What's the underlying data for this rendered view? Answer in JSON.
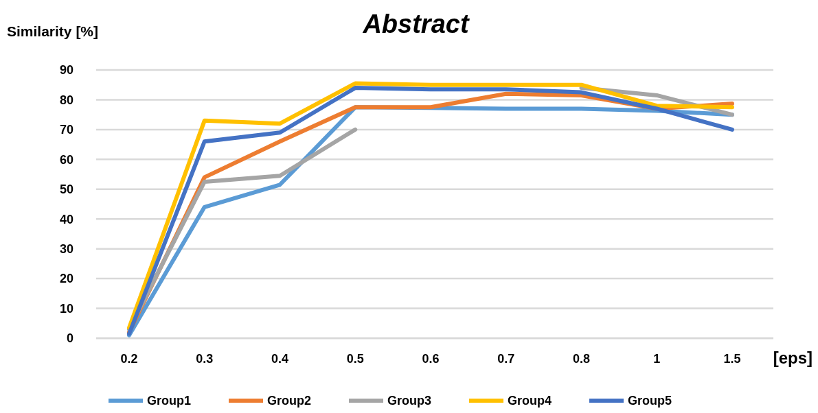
{
  "chart_data": {
    "type": "line",
    "title": "Abstract",
    "ylabel": "Similarity [%]",
    "xlabel": "[eps]",
    "categories": [
      "0.2",
      "0.3",
      "0.4",
      "0.5",
      "0.6",
      "0.7",
      "0.8",
      "1",
      "1.5"
    ],
    "ylim": [
      0,
      90
    ],
    "yticks": [
      0,
      10,
      20,
      30,
      40,
      50,
      60,
      70,
      80,
      90
    ],
    "grid": "y",
    "legend": "bottom",
    "marker": "none",
    "line_style": "solid",
    "series": [
      {
        "name": "Group1",
        "color": "#5b9bd5",
        "values": [
          1,
          44,
          51.5,
          77.5,
          77.3,
          77,
          77,
          76.3,
          75
        ]
      },
      {
        "name": "Group2",
        "color": "#ed7d31",
        "values": [
          2,
          54,
          66,
          77.5,
          77.5,
          82,
          81.5,
          77,
          78.7
        ]
      },
      {
        "name": "Group3",
        "color": "#a5a5a5",
        "values": [
          3,
          52.5,
          54.5,
          70,
          null,
          null,
          84,
          81.5,
          75
        ]
      },
      {
        "name": "Group4",
        "color": "#ffc000",
        "values": [
          3.5,
          73,
          72,
          85.5,
          85,
          85,
          85,
          78,
          77.5
        ]
      },
      {
        "name": "Group5",
        "color": "#4472c4",
        "values": [
          1.5,
          66,
          69,
          84,
          83.5,
          83.5,
          82.5,
          77,
          70
        ]
      }
    ]
  }
}
